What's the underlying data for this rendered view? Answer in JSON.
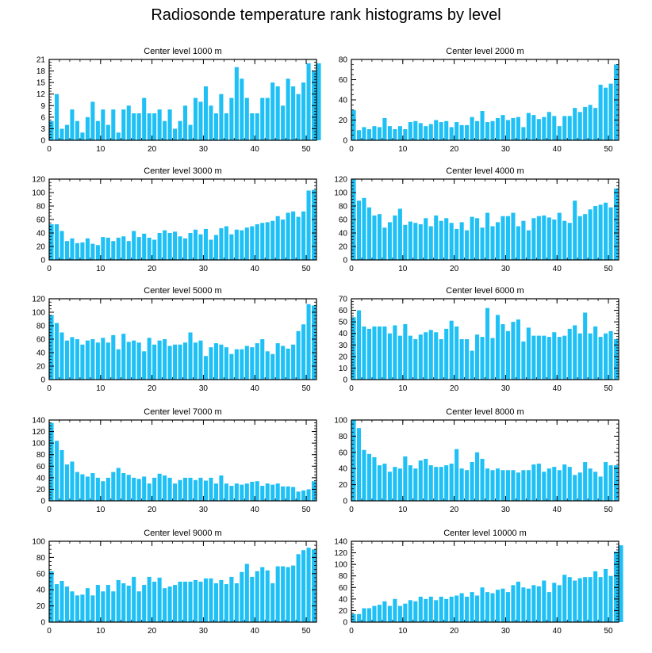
{
  "title": "Radiosonde temperature rank histograms by level",
  "colors": {
    "bar": "#1ec0f5",
    "axis": "#000000",
    "background": "#ffffff"
  },
  "chart_data": [
    {
      "type": "bar",
      "title": "Center level 1000 m",
      "xlim": [
        0,
        52
      ],
      "ylim": [
        0,
        21
      ],
      "yticks": [
        0,
        3,
        6,
        9,
        12,
        15,
        18,
        21
      ],
      "xticks": [
        0,
        10,
        20,
        30,
        40,
        50
      ],
      "values": [
        5,
        12,
        3,
        4,
        8,
        5,
        2,
        6,
        10,
        5,
        8,
        4,
        8,
        2,
        8,
        9,
        7,
        7,
        11,
        7,
        7,
        8,
        5,
        8,
        3,
        5,
        9,
        4,
        11,
        10,
        14,
        9,
        7,
        12,
        7,
        11,
        19,
        16,
        11,
        7,
        7,
        11,
        11,
        15,
        14,
        9,
        16,
        14,
        12,
        15,
        20,
        18,
        20
      ]
    },
    {
      "type": "bar",
      "title": "Center level 2000 m",
      "xlim": [
        0,
        52
      ],
      "ylim": [
        0,
        80
      ],
      "yticks": [
        0,
        20,
        40,
        60,
        80
      ],
      "xticks": [
        0,
        10,
        20,
        30,
        40,
        50
      ],
      "values": [
        30,
        10,
        13,
        11,
        14,
        13,
        22,
        14,
        11,
        14,
        11,
        18,
        19,
        17,
        14,
        16,
        20,
        18,
        19,
        13,
        18,
        15,
        15,
        23,
        19,
        29,
        18,
        19,
        22,
        25,
        20,
        22,
        23,
        13,
        27,
        25,
        21,
        23,
        28,
        24,
        14,
        24,
        24,
        32,
        28,
        33,
        35,
        32,
        55,
        52,
        56,
        75
      ]
    },
    {
      "type": "bar",
      "title": "Center level 3000 m",
      "xlim": [
        0,
        52
      ],
      "ylim": [
        0,
        120
      ],
      "yticks": [
        0,
        20,
        40,
        60,
        80,
        100,
        120
      ],
      "xticks": [
        0,
        10,
        20,
        30,
        40,
        50
      ],
      "values": [
        53,
        53,
        43,
        28,
        32,
        25,
        26,
        32,
        24,
        22,
        34,
        33,
        28,
        33,
        35,
        28,
        43,
        34,
        39,
        33,
        30,
        40,
        44,
        40,
        42,
        35,
        32,
        40,
        45,
        38,
        46,
        30,
        37,
        47,
        50,
        38,
        45,
        44,
        48,
        50,
        53,
        55,
        56,
        58,
        65,
        60,
        70,
        72,
        64,
        72,
        103,
        104
      ]
    },
    {
      "type": "bar",
      "title": "Center level 4000 m",
      "xlim": [
        0,
        52
      ],
      "ylim": [
        0,
        120
      ],
      "yticks": [
        0,
        20,
        40,
        60,
        80,
        100,
        120
      ],
      "xticks": [
        0,
        10,
        20,
        30,
        40,
        50
      ],
      "values": [
        120,
        88,
        92,
        78,
        66,
        68,
        48,
        56,
        66,
        76,
        52,
        57,
        55,
        53,
        62,
        50,
        66,
        58,
        62,
        55,
        46,
        56,
        44,
        64,
        62,
        48,
        70,
        50,
        56,
        65,
        65,
        70,
        50,
        58,
        44,
        62,
        65,
        66,
        63,
        60,
        70,
        58,
        55,
        88,
        65,
        68,
        75,
        80,
        82,
        85,
        78,
        106
      ]
    },
    {
      "type": "bar",
      "title": "Center level 5000 m",
      "xlim": [
        0,
        52
      ],
      "ylim": [
        0,
        120
      ],
      "yticks": [
        0,
        20,
        40,
        60,
        80,
        100,
        120
      ],
      "xticks": [
        0,
        10,
        20,
        30,
        40,
        50
      ],
      "values": [
        96,
        84,
        70,
        58,
        63,
        60,
        52,
        58,
        60,
        55,
        62,
        55,
        66,
        45,
        68,
        56,
        58,
        55,
        42,
        62,
        52,
        58,
        60,
        50,
        52,
        52,
        55,
        70,
        55,
        58,
        35,
        48,
        54,
        52,
        48,
        38,
        45,
        45,
        50,
        48,
        54,
        60,
        42,
        38,
        54,
        50,
        46,
        52,
        72,
        82,
        112,
        110
      ]
    },
    {
      "type": "bar",
      "title": "Center level 6000 m",
      "xlim": [
        0,
        52
      ],
      "ylim": [
        0,
        70
      ],
      "yticks": [
        0,
        10,
        20,
        30,
        40,
        50,
        60,
        70
      ],
      "xticks": [
        0,
        10,
        20,
        30,
        40,
        50
      ],
      "values": [
        54,
        60,
        46,
        44,
        46,
        46,
        46,
        40,
        47,
        38,
        48,
        38,
        35,
        39,
        41,
        43,
        41,
        35,
        44,
        51,
        46,
        35,
        35,
        25,
        39,
        37,
        62,
        36,
        56,
        48,
        42,
        50,
        52,
        33,
        45,
        38,
        38,
        38,
        37,
        41,
        37,
        38,
        44,
        47,
        40,
        58,
        40,
        46,
        37,
        40,
        42,
        35
      ]
    },
    {
      "type": "bar",
      "title": "Center level 7000 m",
      "xlim": [
        0,
        52
      ],
      "ylim": [
        0,
        140
      ],
      "yticks": [
        0,
        20,
        40,
        60,
        80,
        100,
        120,
        140
      ],
      "xticks": [
        0,
        10,
        20,
        30,
        40,
        50
      ],
      "values": [
        135,
        104,
        88,
        63,
        68,
        50,
        46,
        42,
        48,
        40,
        34,
        40,
        50,
        57,
        48,
        45,
        40,
        38,
        42,
        30,
        40,
        47,
        44,
        40,
        30,
        36,
        40,
        40,
        36,
        40,
        35,
        40,
        30,
        44,
        30,
        26,
        30,
        28,
        30,
        33,
        34,
        26,
        30,
        28,
        30,
        25,
        25,
        24,
        16,
        18,
        20,
        34
      ]
    },
    {
      "type": "bar",
      "title": "Center level 8000 m",
      "xlim": [
        0,
        52
      ],
      "ylim": [
        0,
        100
      ],
      "yticks": [
        0,
        20,
        40,
        60,
        80,
        100
      ],
      "xticks": [
        0,
        10,
        20,
        30,
        40,
        50
      ],
      "values": [
        100,
        90,
        63,
        58,
        54,
        44,
        46,
        36,
        42,
        40,
        55,
        44,
        40,
        50,
        52,
        44,
        42,
        42,
        44,
        46,
        64,
        40,
        38,
        48,
        60,
        52,
        40,
        38,
        40,
        38,
        38,
        38,
        35,
        38,
        38,
        45,
        46,
        36,
        40,
        42,
        38,
        45,
        42,
        32,
        35,
        48,
        40,
        36,
        30,
        48,
        44,
        44
      ]
    },
    {
      "type": "bar",
      "title": "Center level 9000 m",
      "xlim": [
        0,
        52
      ],
      "ylim": [
        0,
        100
      ],
      "yticks": [
        0,
        20,
        40,
        60,
        80,
        100
      ],
      "xticks": [
        0,
        10,
        20,
        30,
        40,
        50
      ],
      "values": [
        63,
        47,
        51,
        44,
        38,
        33,
        34,
        42,
        33,
        46,
        38,
        46,
        38,
        52,
        48,
        45,
        56,
        38,
        46,
        56,
        50,
        55,
        42,
        44,
        46,
        50,
        50,
        50,
        52,
        50,
        54,
        54,
        48,
        52,
        47,
        56,
        48,
        62,
        72,
        56,
        63,
        68,
        64,
        48,
        69,
        69,
        68,
        70,
        84,
        89,
        92,
        90
      ]
    },
    {
      "type": "bar",
      "title": "Center level 10000 m",
      "xlim": [
        0,
        52
      ],
      "ylim": [
        0,
        140
      ],
      "yticks": [
        0,
        20,
        40,
        60,
        80,
        100,
        120,
        140
      ],
      "xticks": [
        0,
        10,
        20,
        30,
        40,
        50
      ],
      "values": [
        14,
        14,
        24,
        24,
        28,
        30,
        36,
        28,
        40,
        28,
        32,
        38,
        36,
        44,
        40,
        44,
        38,
        44,
        40,
        44,
        46,
        50,
        44,
        52,
        46,
        60,
        52,
        50,
        56,
        58,
        52,
        64,
        70,
        60,
        58,
        64,
        62,
        72,
        52,
        68,
        64,
        82,
        78,
        72,
        76,
        78,
        78,
        88,
        78,
        92,
        80,
        122,
        133
      ]
    }
  ]
}
